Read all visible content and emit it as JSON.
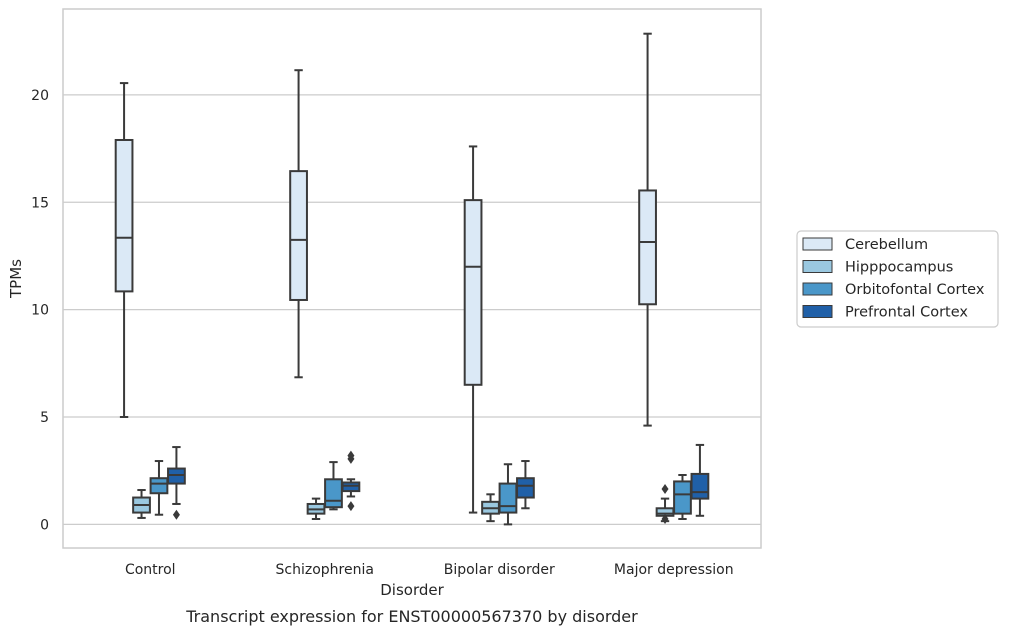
{
  "colors": {
    "Cerebellum": "#dbe9f6",
    "Hipppocampus": "#9ac8e0",
    "Orbitofontal Cortex": "#4a97c9",
    "Prefrontal Cortex": "#2060a8",
    "line": "#3a3a3a",
    "grid": "#cccccc",
    "frame": "#cccccc"
  },
  "caption": "Transcript expression for ENST00000567370 by disorder",
  "chart_data": {
    "type": "box",
    "xlabel": "Disorder",
    "ylabel": "TPMs",
    "ylim": [
      -1.1,
      24.0
    ],
    "yticks": [
      0,
      5,
      10,
      15,
      20
    ],
    "grid": "horizontal",
    "legend_position": "right",
    "categories": [
      "Control",
      "Schizophrenia",
      "Bipolar disorder",
      "Major depression"
    ],
    "series": [
      {
        "name": "Cerebellum",
        "boxes": [
          {
            "whislo": 5.0,
            "q1": 10.85,
            "med": 13.35,
            "q3": 17.9,
            "whishi": 20.55,
            "fliers": []
          },
          {
            "whislo": 6.85,
            "q1": 10.45,
            "med": 13.25,
            "q3": 16.45,
            "whishi": 21.15,
            "fliers": []
          },
          {
            "whislo": 0.55,
            "q1": 6.5,
            "med": 12.0,
            "q3": 15.1,
            "whishi": 17.6,
            "fliers": []
          },
          {
            "whislo": 4.6,
            "q1": 10.25,
            "med": 13.15,
            "q3": 15.55,
            "whishi": 22.85,
            "fliers": []
          }
        ]
      },
      {
        "name": "Hipppocampus",
        "boxes": [
          {
            "whislo": 0.3,
            "q1": 0.55,
            "med": 0.9,
            "q3": 1.25,
            "whishi": 1.6,
            "fliers": []
          },
          {
            "whislo": 0.25,
            "q1": 0.5,
            "med": 0.7,
            "q3": 0.95,
            "whishi": 1.2,
            "fliers": []
          },
          {
            "whislo": 0.15,
            "q1": 0.5,
            "med": 0.75,
            "q3": 1.05,
            "whishi": 1.4,
            "fliers": []
          },
          {
            "whislo": 0.15,
            "q1": 0.4,
            "med": 0.5,
            "q3": 0.75,
            "whishi": 1.2,
            "fliers": [
              0.25,
              1.65
            ]
          }
        ]
      },
      {
        "name": "Orbitofontal Cortex",
        "boxes": [
          {
            "whislo": 0.45,
            "q1": 1.45,
            "med": 1.9,
            "q3": 2.15,
            "whishi": 2.95,
            "fliers": []
          },
          {
            "whislo": 0.7,
            "q1": 0.8,
            "med": 1.1,
            "q3": 2.1,
            "whishi": 2.9,
            "fliers": []
          },
          {
            "whislo": 0.0,
            "q1": 0.55,
            "med": 0.85,
            "q3": 1.9,
            "whishi": 2.8,
            "fliers": []
          },
          {
            "whislo": 0.25,
            "q1": 0.5,
            "med": 1.4,
            "q3": 2.0,
            "whishi": 2.3,
            "fliers": []
          }
        ]
      },
      {
        "name": "Prefrontal Cortex",
        "boxes": [
          {
            "whislo": 0.95,
            "q1": 1.9,
            "med": 2.3,
            "q3": 2.6,
            "whishi": 3.6,
            "fliers": [
              0.45
            ]
          },
          {
            "whislo": 1.3,
            "q1": 1.55,
            "med": 1.8,
            "q3": 1.95,
            "whishi": 2.1,
            "fliers": [
              0.85,
              3.05,
              3.2
            ]
          },
          {
            "whislo": 0.75,
            "q1": 1.25,
            "med": 1.8,
            "q3": 2.15,
            "whishi": 2.95,
            "fliers": []
          },
          {
            "whislo": 0.4,
            "q1": 1.2,
            "med": 1.5,
            "q3": 2.35,
            "whishi": 3.7,
            "fliers": []
          }
        ]
      }
    ]
  }
}
